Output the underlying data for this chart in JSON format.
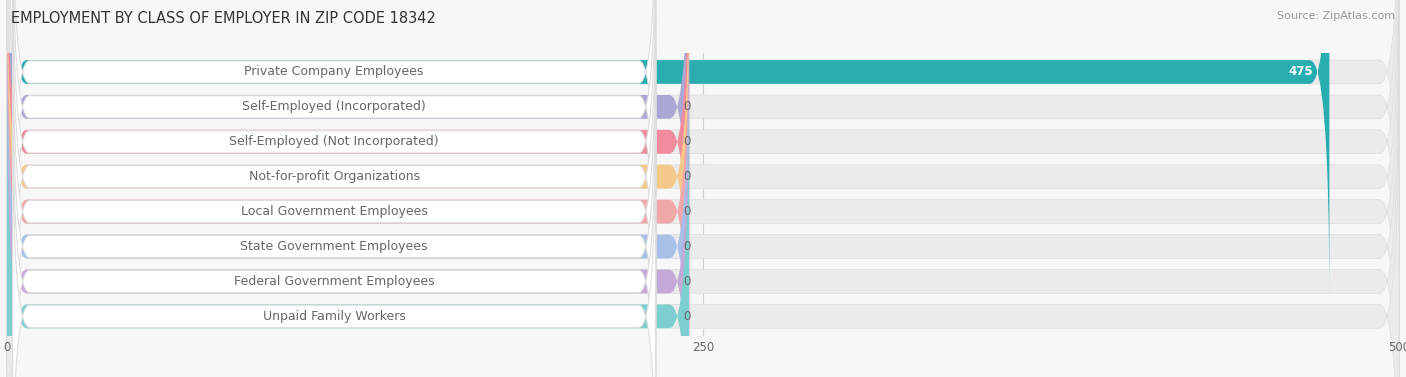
{
  "title": "EMPLOYMENT BY CLASS OF EMPLOYER IN ZIP CODE 18342",
  "source": "Source: ZipAtlas.com",
  "categories": [
    "Private Company Employees",
    "Self-Employed (Incorporated)",
    "Self-Employed (Not Incorporated)",
    "Not-for-profit Organizations",
    "Local Government Employees",
    "State Government Employees",
    "Federal Government Employees",
    "Unpaid Family Workers"
  ],
  "values": [
    475,
    0,
    0,
    0,
    0,
    0,
    0,
    0
  ],
  "bar_colors": [
    "#2AADB1",
    "#A9A8D4",
    "#F28B9E",
    "#F5C98A",
    "#F0A8A8",
    "#A8C0E8",
    "#C4A8D8",
    "#7DCFCF"
  ],
  "xlim_max": 500,
  "xticks": [
    0,
    250,
    500
  ],
  "bg_color": "#f7f7f7",
  "row_bg_color": "#ebebeb",
  "label_box_color": "white",
  "label_box_edge_color": "#dddddd",
  "grid_color": "#d0d0d0",
  "text_color": "#666666",
  "title_color": "#333333",
  "source_color": "#999999",
  "title_fontsize": 10.5,
  "label_fontsize": 9,
  "value_fontsize": 8.5,
  "tick_fontsize": 8.5
}
